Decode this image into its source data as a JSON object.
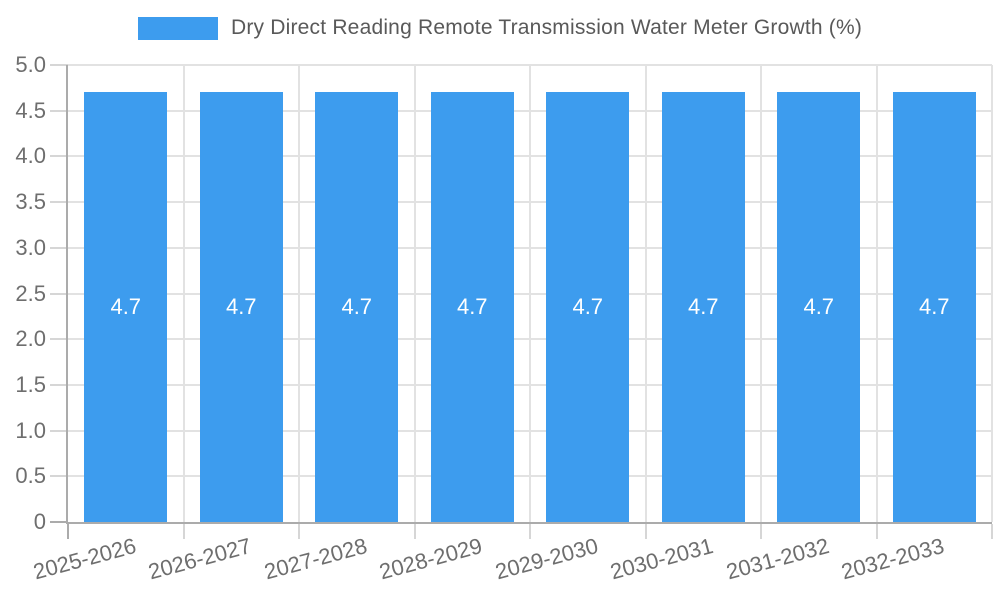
{
  "chart_data": {
    "type": "bar",
    "title": "Dry Direct Reading Remote Transmission Water Meter Growth (%)",
    "legend": {
      "label": "Dry Direct Reading Remote Transmission Water Meter Growth (%)",
      "position": "top"
    },
    "categories": [
      "2025-2026",
      "2026-2027",
      "2027-2028",
      "2028-2029",
      "2029-2030",
      "2030-2031",
      "2031-2032",
      "2032-2033"
    ],
    "series": [
      {
        "name": "Dry Direct Reading Remote Transmission Water Meter Growth (%)",
        "values": [
          4.7,
          4.7,
          4.7,
          4.7,
          4.7,
          4.7,
          4.7,
          4.7
        ]
      }
    ],
    "bar_value_labels": [
      "4.7",
      "4.7",
      "4.7",
      "4.7",
      "4.7",
      "4.7",
      "4.7",
      "4.7"
    ],
    "xlabel": "",
    "ylabel": "",
    "ylim": [
      0,
      5
    ],
    "ytick_labels": [
      "0",
      "0.5",
      "1.0",
      "1.5",
      "2.0",
      "2.5",
      "3.0",
      "3.5",
      "4.0",
      "4.5",
      "5.0"
    ],
    "grid": true,
    "x_tick_rotation_deg": -15,
    "legend_position": "top",
    "colors": {
      "bar": "#3D9CEE",
      "bar_label": "#FFFFFF",
      "grid": "#E2E2E2",
      "axis": "#ABABAB",
      "tick_mark": "#D6D6D6",
      "tick_label": "#6E6E6E",
      "legend_text": "#595959",
      "background": "#FFFFFF"
    }
  }
}
